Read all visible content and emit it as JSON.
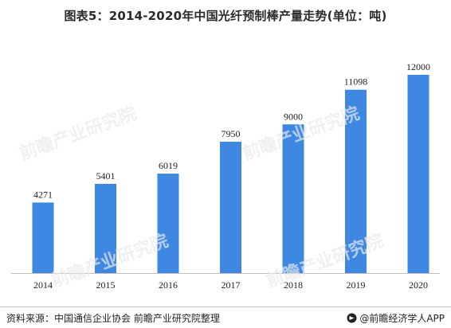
{
  "title": "图表5：2014-2020年中国光纤预制棒产量走势(单位：吨)",
  "footer": {
    "source": "资料来源：中国通信企业协会 前瞻产业研究院整理",
    "brand": "@前瞻经济学人APP"
  },
  "watermark": "前瞻产业研究院",
  "colors": {
    "bar": "#3f88e1",
    "axis": "#bfbfbf",
    "text": "#1f1f1f"
  },
  "chart_data": {
    "type": "bar",
    "title": "图表5：2014-2020年中国光纤预制棒产量走势(单位：吨)",
    "categories": [
      "2014",
      "2015",
      "2016",
      "2017",
      "2018",
      "2019",
      "2020"
    ],
    "values": [
      4271,
      5401,
      6019,
      7950,
      9000,
      11098,
      12000
    ],
    "ylim": [
      0,
      12000
    ],
    "xlabel": "",
    "ylabel": "",
    "grid": false,
    "data_labels": true
  }
}
